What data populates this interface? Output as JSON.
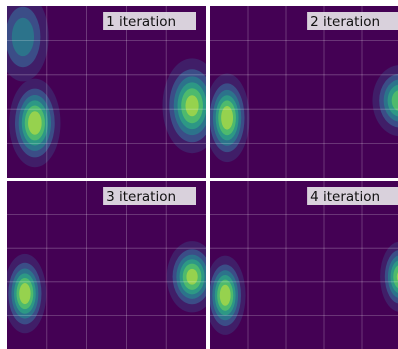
{
  "chart_data": {
    "type": "heatmap",
    "colormap": "viridis",
    "grid": true,
    "layout": "2x2",
    "panels": [
      {
        "label": "1 iteration",
        "blobs": [
          {
            "cx": 0.14,
            "cy": 0.68,
            "sx": 0.06,
            "sy": 0.12,
            "peak": 1.0
          },
          {
            "cx": 0.08,
            "cy": 0.18,
            "sx": 0.07,
            "sy": 0.14,
            "peak": 0.55
          },
          {
            "cx": 0.93,
            "cy": 0.58,
            "sx": 0.07,
            "sy": 0.13,
            "peak": 0.95
          }
        ]
      },
      {
        "label": "2 iteration",
        "blobs": [
          {
            "cx": 0.09,
            "cy": 0.65,
            "sx": 0.055,
            "sy": 0.12,
            "peak": 1.0
          },
          {
            "cx": 1.0,
            "cy": 0.55,
            "sx": 0.07,
            "sy": 0.1,
            "peak": 0.85
          }
        ]
      },
      {
        "label": "3 iteration",
        "blobs": [
          {
            "cx": 0.09,
            "cy": 0.67,
            "sx": 0.05,
            "sy": 0.11,
            "peak": 1.0
          },
          {
            "cx": 0.93,
            "cy": 0.57,
            "sx": 0.06,
            "sy": 0.1,
            "peak": 0.95
          }
        ]
      },
      {
        "label": "4 iteration",
        "blobs": [
          {
            "cx": 0.08,
            "cy": 0.68,
            "sx": 0.05,
            "sy": 0.11,
            "peak": 1.0
          },
          {
            "cx": 1.0,
            "cy": 0.57,
            "sx": 0.05,
            "sy": 0.1,
            "peak": 0.9
          }
        ]
      }
    ]
  }
}
